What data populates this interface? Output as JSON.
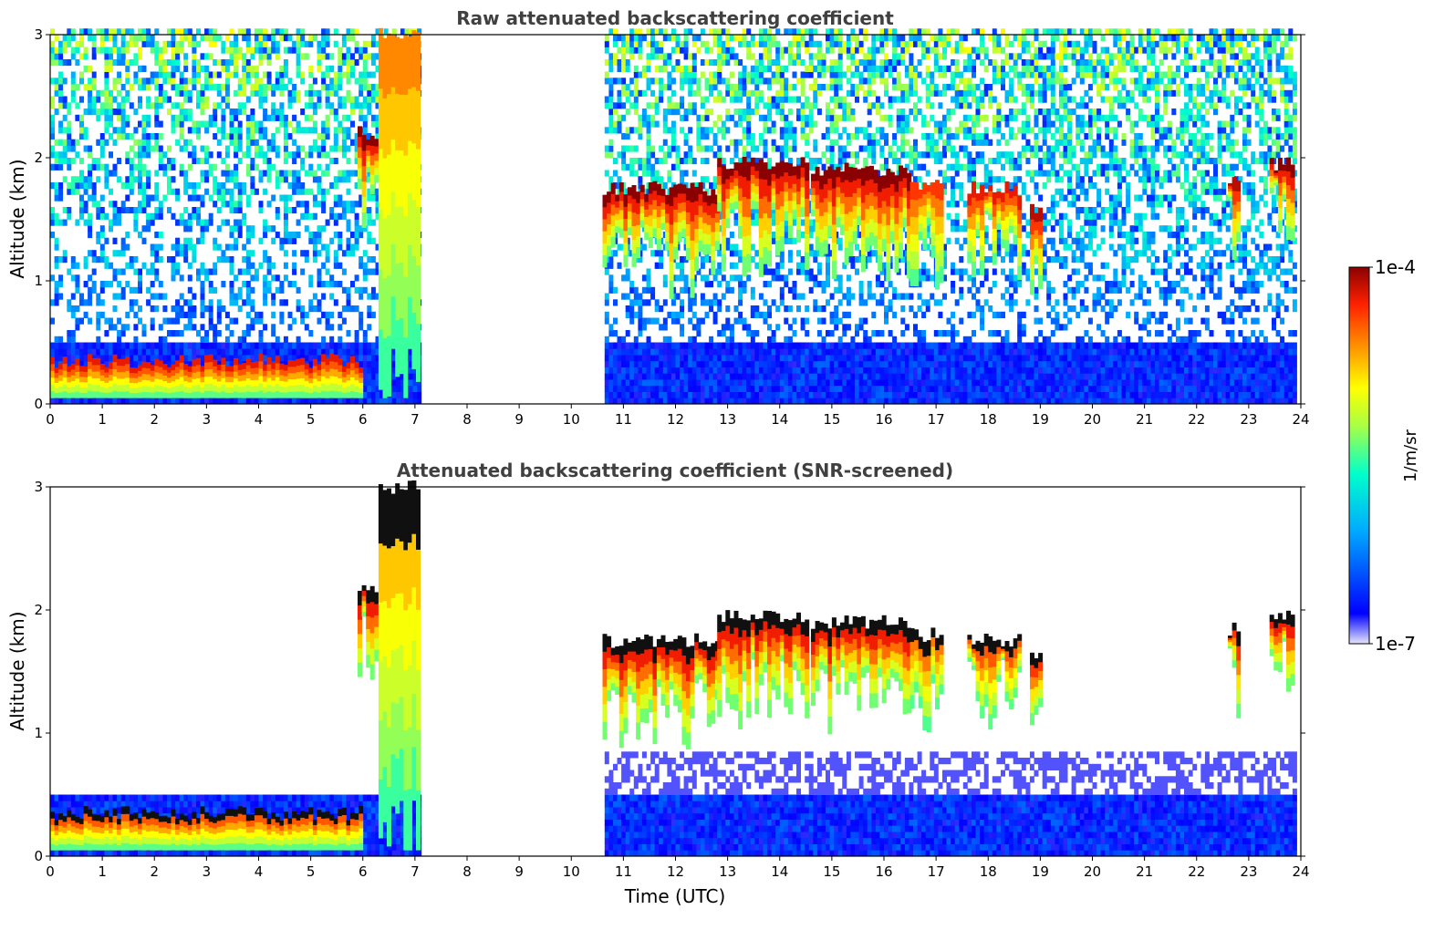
{
  "chart_data": [
    {
      "type": "heatmap",
      "title": "Raw attenuated backscattering coefficient",
      "xlabel": "",
      "ylabel": "Altitude (km)",
      "xlim": [
        0,
        24
      ],
      "ylim": [
        0,
        3
      ],
      "xticks": [
        "0",
        "1",
        "2",
        "3",
        "4",
        "5",
        "6",
        "7",
        "8",
        "9",
        "10",
        "11",
        "12",
        "13",
        "14",
        "15",
        "16",
        "17",
        "18",
        "19",
        "20",
        "21",
        "22",
        "23",
        "24"
      ],
      "yticks": [
        "0",
        "1",
        "2",
        "3"
      ],
      "data_gap_utc": [
        7.1,
        10.6
      ],
      "cloud_layers": [
        {
          "start": 0.0,
          "end": 6.0,
          "top_km": 0.35,
          "base_km": 0.05,
          "level": 0.9
        },
        {
          "start": 5.9,
          "end": 6.3,
          "top_km": 2.2,
          "base_km": 2.0,
          "level": 1.0
        },
        {
          "start": 6.3,
          "end": 7.1,
          "top_km": 3.0,
          "base_km": 0.5,
          "level": 0.75
        },
        {
          "start": 10.6,
          "end": 12.8,
          "top_km": 1.75,
          "base_km": 1.45,
          "level": 1.0
        },
        {
          "start": 12.8,
          "end": 14.5,
          "top_km": 1.95,
          "base_km": 1.6,
          "level": 1.0
        },
        {
          "start": 14.6,
          "end": 16.5,
          "top_km": 1.9,
          "base_km": 1.55,
          "level": 1.0
        },
        {
          "start": 16.5,
          "end": 17.1,
          "top_km": 1.8,
          "base_km": 1.5,
          "level": 0.85
        },
        {
          "start": 17.6,
          "end": 18.6,
          "top_km": 1.75,
          "base_km": 1.6,
          "level": 0.9
        },
        {
          "start": 18.8,
          "end": 19.0,
          "top_km": 1.6,
          "base_km": 1.45,
          "level": 0.95
        },
        {
          "start": 22.6,
          "end": 22.8,
          "top_km": 1.85,
          "base_km": 1.7,
          "level": 0.95
        },
        {
          "start": 23.4,
          "end": 23.8,
          "top_km": 1.95,
          "base_km": 1.8,
          "level": 1.0
        }
      ],
      "noise_filled": true
    },
    {
      "type": "heatmap",
      "title": "Attenuated backscattering coefficient (SNR-screened)",
      "xlabel": "Time (UTC)",
      "ylabel": "Altitude (km)",
      "xlim": [
        0,
        24
      ],
      "ylim": [
        0,
        3
      ],
      "xticks": [
        "0",
        "1",
        "2",
        "3",
        "4",
        "5",
        "6",
        "7",
        "8",
        "9",
        "10",
        "11",
        "12",
        "13",
        "14",
        "15",
        "16",
        "17",
        "18",
        "19",
        "20",
        "21",
        "22",
        "23",
        "24"
      ],
      "yticks": [
        "0",
        "1",
        "2",
        "3"
      ],
      "data_gap_utc": [
        7.1,
        10.6
      ],
      "cloud_layers": [
        {
          "start": 0.0,
          "end": 6.0,
          "top_km": 0.35,
          "base_km": 0.05,
          "level": 0.9
        },
        {
          "start": 5.9,
          "end": 6.3,
          "top_km": 2.2,
          "base_km": 2.0,
          "level": 1.0
        },
        {
          "start": 6.3,
          "end": 7.1,
          "top_km": 3.0,
          "base_km": 0.5,
          "level": 0.75
        },
        {
          "start": 10.6,
          "end": 12.8,
          "top_km": 1.75,
          "base_km": 1.45,
          "level": 1.0
        },
        {
          "start": 12.8,
          "end": 14.5,
          "top_km": 1.95,
          "base_km": 1.6,
          "level": 1.0
        },
        {
          "start": 14.6,
          "end": 16.5,
          "top_km": 1.9,
          "base_km": 1.55,
          "level": 1.0
        },
        {
          "start": 16.5,
          "end": 17.1,
          "top_km": 1.8,
          "base_km": 1.5,
          "level": 0.85
        },
        {
          "start": 17.6,
          "end": 18.6,
          "top_km": 1.75,
          "base_km": 1.6,
          "level": 0.9
        },
        {
          "start": 18.8,
          "end": 19.0,
          "top_km": 1.6,
          "base_km": 1.45,
          "level": 0.95
        },
        {
          "start": 22.6,
          "end": 22.8,
          "top_km": 1.85,
          "base_km": 1.7,
          "level": 0.95
        },
        {
          "start": 23.4,
          "end": 23.8,
          "top_km": 1.95,
          "base_km": 1.8,
          "level": 1.0
        }
      ],
      "noise_filled": false
    }
  ],
  "colorbar": {
    "label": "1/m/sr",
    "min_label": "1e-7",
    "max_label": "1e-4",
    "colormap": [
      "#e6e6fa",
      "#0000ff",
      "#00aaff",
      "#00ffcc",
      "#aaff44",
      "#ffff00",
      "#ff8800",
      "#ff2200",
      "#8b0000"
    ]
  }
}
